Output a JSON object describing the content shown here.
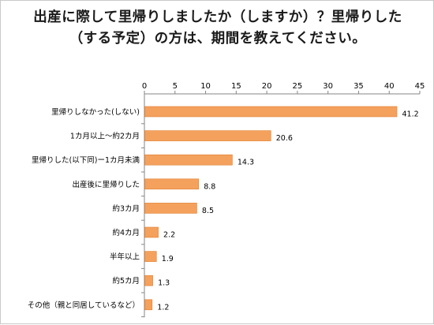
{
  "chart_data": {
    "type": "bar",
    "orientation": "horizontal",
    "title": "出産に際して里帰りしましたか（しますか）？里帰りした（する予定）の方は、期間を教えてください。",
    "categories": [
      "里帰りしなかった(しない)",
      "1カ月以上～約2カ月",
      "里帰りした(以下同)ー1カ月未満",
      "出産後に里帰りした",
      "約3カ月",
      "約4カ月",
      "半年以上",
      "約5カ月",
      "その他（親と同居しているなど）"
    ],
    "values": [
      41.2,
      20.6,
      14.3,
      8.8,
      8.5,
      2.2,
      1.9,
      1.3,
      1.2
    ],
    "data_labels": [
      "41.2",
      "20.6",
      "14.3",
      "8.8",
      "8.5",
      "2.2",
      "1.9",
      "1.3",
      "1.2"
    ],
    "xlim": [
      0,
      45
    ],
    "x_ticks": [
      0,
      5,
      10,
      15,
      20,
      25,
      30,
      35,
      40,
      45
    ],
    "x_tick_labels": [
      "0",
      "5",
      "10",
      "15",
      "20",
      "25",
      "30",
      "35",
      "40",
      "45"
    ],
    "xaxis_position": "top",
    "bar_color": "#f4a15d",
    "bar_border_color": "#e07f2e",
    "grid": false,
    "legend": "none"
  }
}
